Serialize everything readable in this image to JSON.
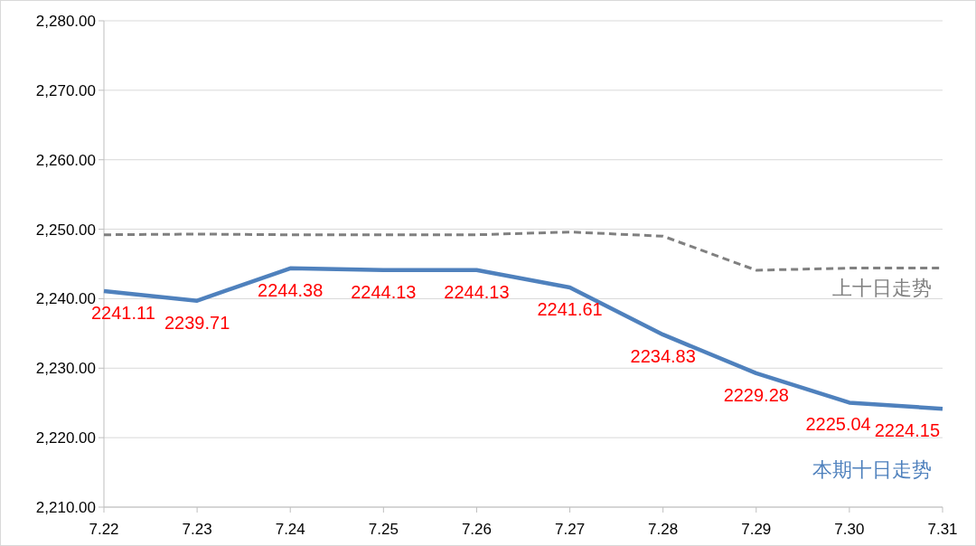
{
  "chart_data": {
    "type": "line",
    "categories": [
      "7.22",
      "7.23",
      "7.24",
      "7.25",
      "7.26",
      "7.27",
      "7.28",
      "7.29",
      "7.30",
      "7.31"
    ],
    "series": [
      {
        "name": "上十日走势",
        "color": "#808080",
        "line_style": "dashed",
        "values": [
          2249.2,
          2249.3,
          2249.2,
          2249.2,
          2249.2,
          2249.6,
          2249.0,
          2244.1,
          2244.4,
          2244.4
        ]
      },
      {
        "name": "本期十日走势",
        "color": "#4f81bd",
        "line_style": "solid",
        "data_labels": true,
        "values": [
          2241.11,
          2239.71,
          2244.38,
          2244.13,
          2244.13,
          2241.61,
          2234.83,
          2229.28,
          2225.04,
          2224.15
        ]
      }
    ],
    "ylim": [
      2210,
      2280
    ],
    "yticks": [
      {
        "value": 2210,
        "label": "2,210.00"
      },
      {
        "value": 2220,
        "label": "2,220.00"
      },
      {
        "value": 2230,
        "label": "2,230.00"
      },
      {
        "value": 2240,
        "label": "2,240.00"
      },
      {
        "value": 2250,
        "label": "2,250.00"
      },
      {
        "value": 2260,
        "label": "2,260.00"
      },
      {
        "value": 2270,
        "label": "2,270.00"
      },
      {
        "value": 2280,
        "label": "2,280.00"
      }
    ],
    "grid": "y"
  }
}
